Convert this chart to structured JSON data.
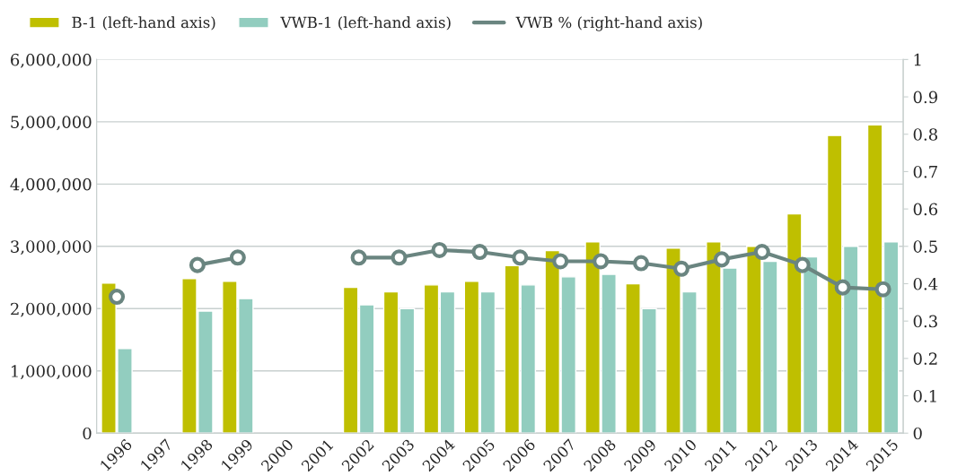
{
  "chart_data": {
    "type": "bar",
    "categories": [
      "1996",
      "1997",
      "1998",
      "1999",
      "2000",
      "2001",
      "2002",
      "2003",
      "2004",
      "2005",
      "2006",
      "2007",
      "2008",
      "2009",
      "2010",
      "2011",
      "2012",
      "2013",
      "2014",
      "2015"
    ],
    "series": [
      {
        "name": "B-1 (left-hand axis)",
        "color": "#bfbf00",
        "values": [
          2410000,
          null,
          2480000,
          2440000,
          null,
          null,
          2340000,
          2270000,
          2380000,
          2440000,
          2690000,
          2930000,
          3070000,
          2400000,
          2970000,
          3070000,
          3000000,
          3520000,
          4780000,
          4950000
        ]
      },
      {
        "name": "VWB-1 (left-hand axis)",
        "color": "#92cdbf",
        "values": [
          1360000,
          null,
          1960000,
          2160000,
          null,
          null,
          2060000,
          2000000,
          2270000,
          2270000,
          2380000,
          2510000,
          2550000,
          2000000,
          2270000,
          2650000,
          2760000,
          2830000,
          3000000,
          3070000
        ]
      },
      {
        "name": "VWB % (right-hand axis)",
        "type": "line",
        "axis": "y2",
        "color": "#6a8580",
        "marker": "circle",
        "values": [
          0.365,
          null,
          0.45,
          0.47,
          null,
          null,
          0.47,
          0.47,
          0.49,
          0.485,
          0.47,
          0.46,
          0.46,
          0.455,
          0.44,
          0.465,
          0.485,
          0.45,
          0.39,
          0.385
        ]
      }
    ],
    "ylim": [
      0,
      6000000
    ],
    "yticks": [
      {
        "value": 0,
        "label": "0"
      },
      {
        "value": 1000000,
        "label": "1,000,000"
      },
      {
        "value": 2000000,
        "label": "2,000,000"
      },
      {
        "value": 3000000,
        "label": "3,000,000"
      },
      {
        "value": 4000000,
        "label": "4,000,000"
      },
      {
        "value": 5000000,
        "label": "5,000,000"
      },
      {
        "value": 6000000,
        "label": "6,000,000"
      }
    ],
    "y2lim": [
      0,
      1
    ],
    "y2ticks": [
      0,
      0.1,
      0.2,
      0.3,
      0.4,
      0.5,
      0.6,
      0.7,
      0.8,
      0.9,
      1
    ],
    "grid": "y",
    "legend": "top left"
  }
}
